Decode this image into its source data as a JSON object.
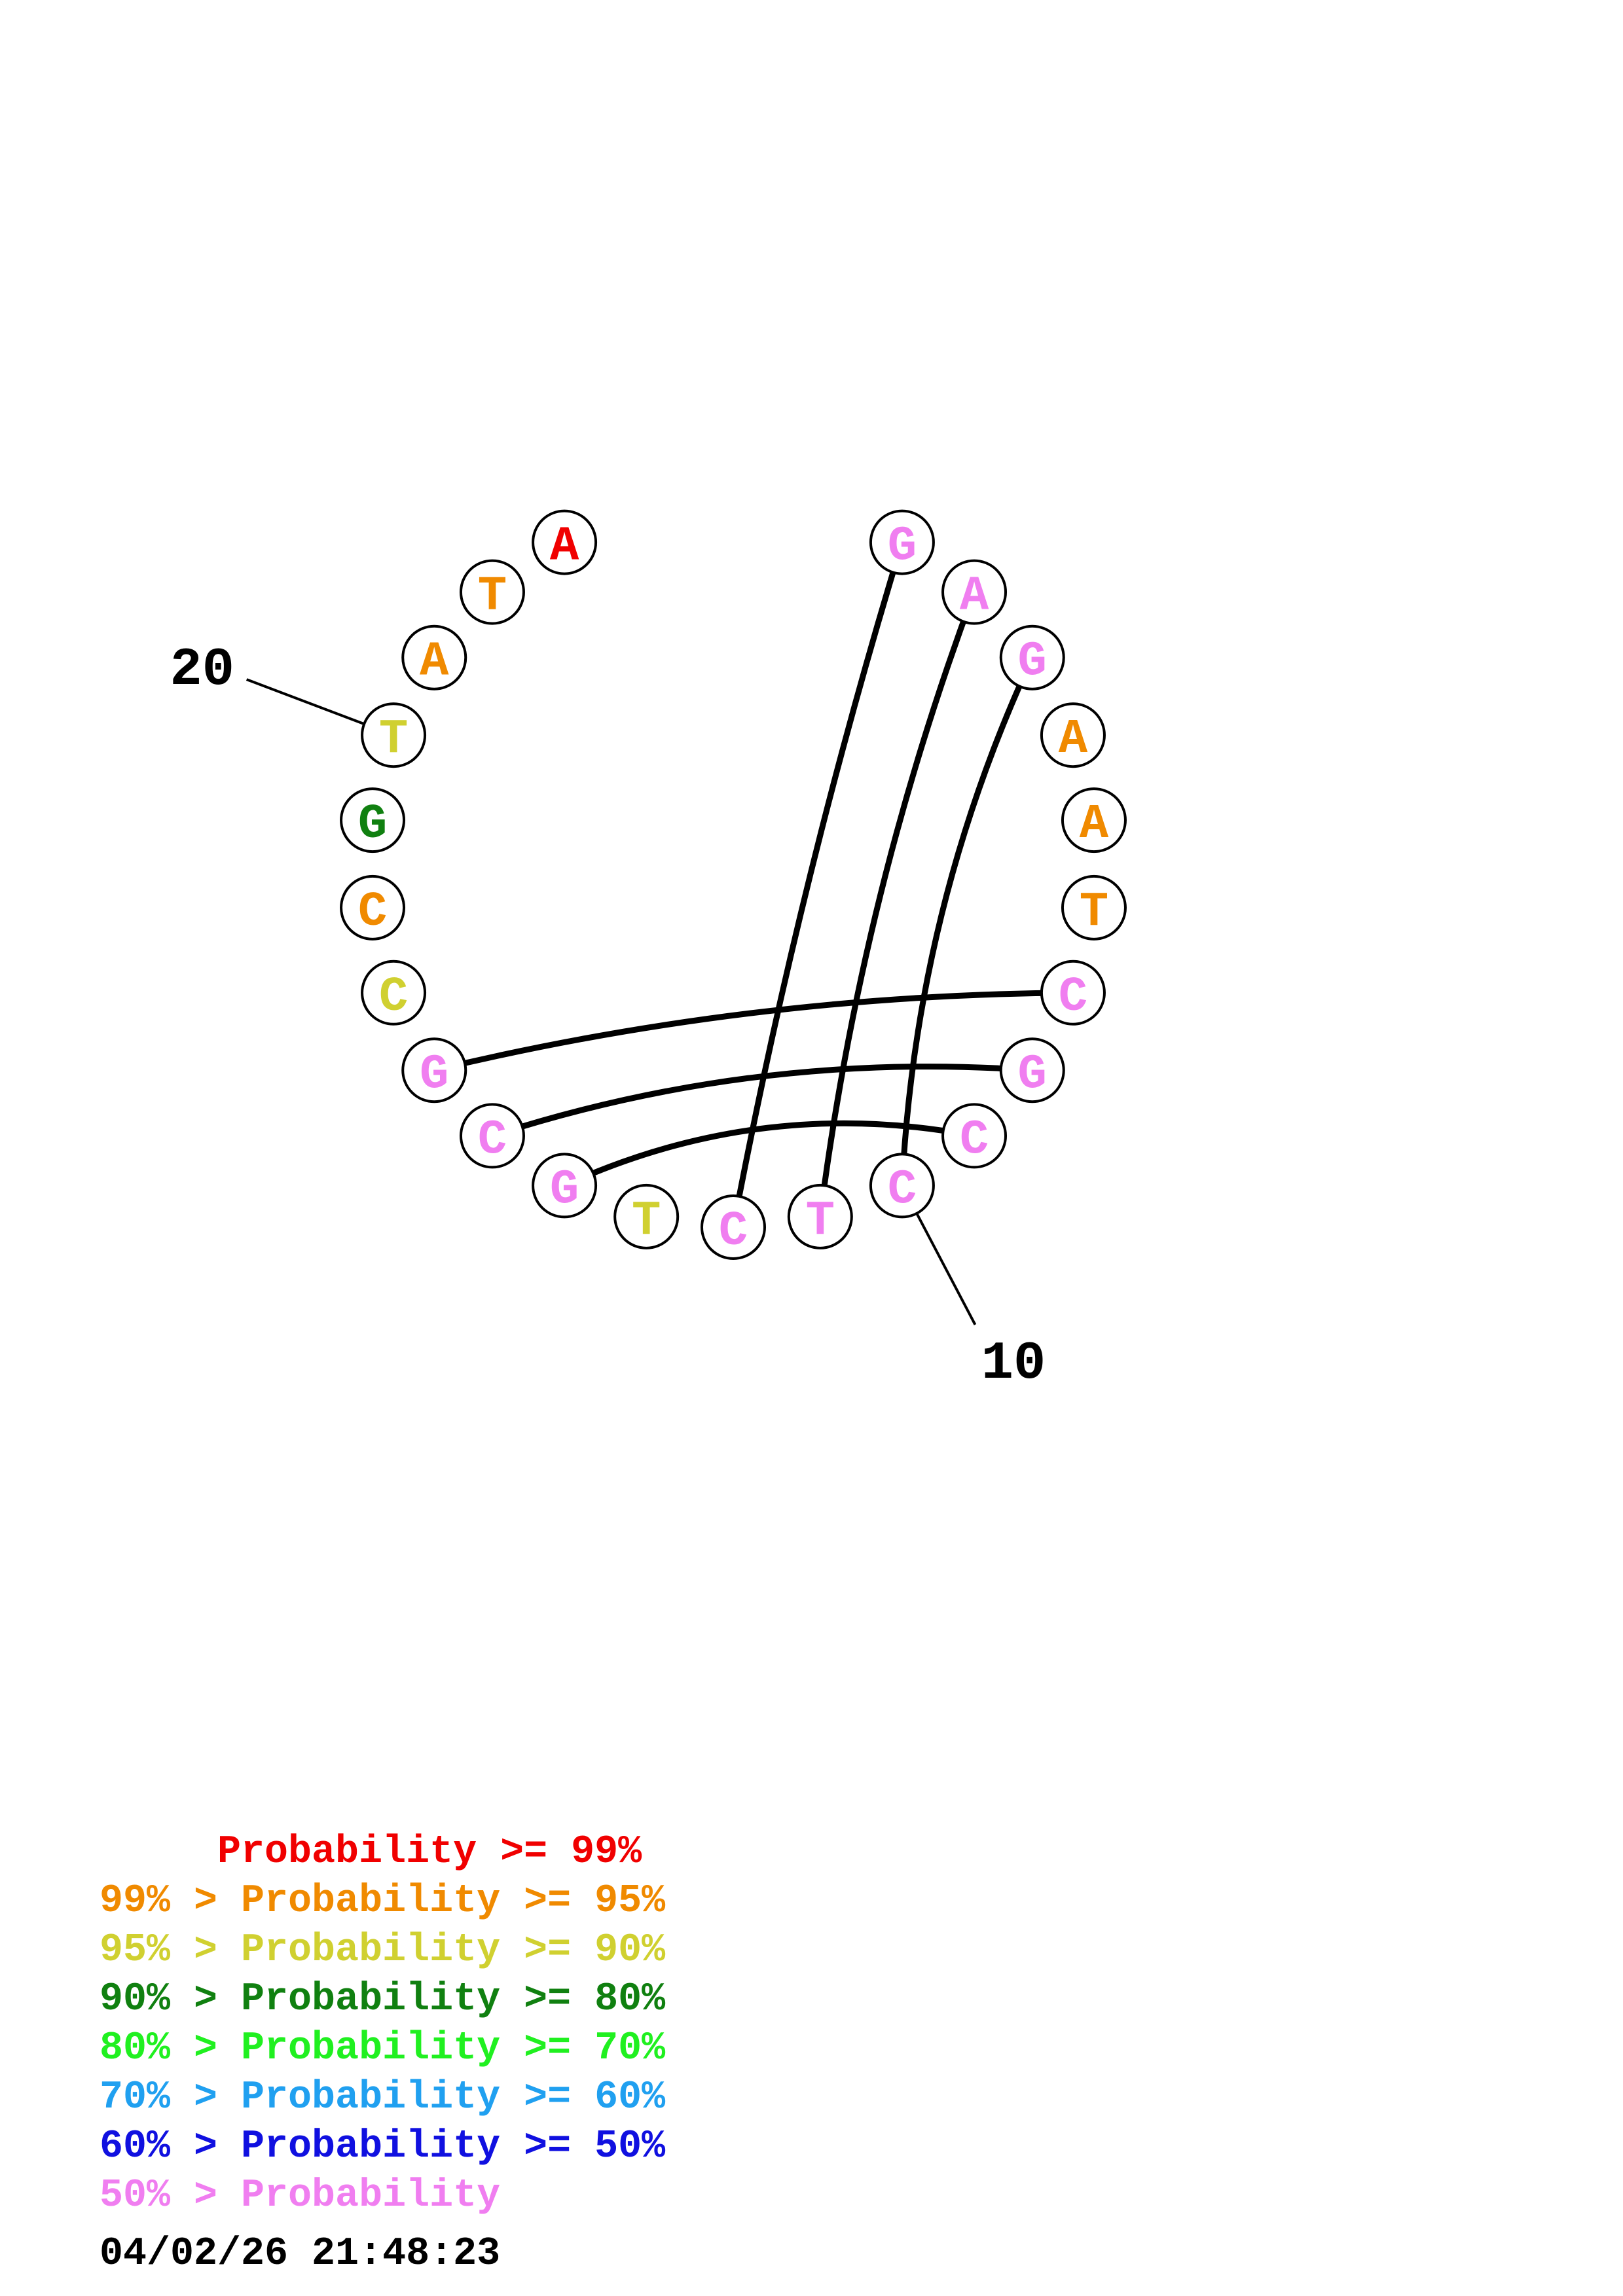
{
  "structure": {
    "bases": [
      {
        "n": 1,
        "base": "G",
        "color": "#f07ef0"
      },
      {
        "n": 2,
        "base": "A",
        "color": "#f07ef0"
      },
      {
        "n": 3,
        "base": "G",
        "color": "#f07ef0"
      },
      {
        "n": 4,
        "base": "A",
        "color": "#f08a00"
      },
      {
        "n": 5,
        "base": "A",
        "color": "#f08a00"
      },
      {
        "n": 6,
        "base": "T",
        "color": "#f08a00"
      },
      {
        "n": 7,
        "base": "C",
        "color": "#f07ef0"
      },
      {
        "n": 8,
        "base": "G",
        "color": "#f07ef0"
      },
      {
        "n": 9,
        "base": "C",
        "color": "#f07ef0"
      },
      {
        "n": 10,
        "base": "C",
        "color": "#f07ef0"
      },
      {
        "n": 11,
        "base": "T",
        "color": "#f07ef0"
      },
      {
        "n": 12,
        "base": "C",
        "color": "#f07ef0"
      },
      {
        "n": 13,
        "base": "T",
        "color": "#d0d030"
      },
      {
        "n": 14,
        "base": "G",
        "color": "#f07ef0"
      },
      {
        "n": 15,
        "base": "C",
        "color": "#f07ef0"
      },
      {
        "n": 16,
        "base": "G",
        "color": "#f07ef0"
      },
      {
        "n": 17,
        "base": "C",
        "color": "#d0d030"
      },
      {
        "n": 18,
        "base": "C",
        "color": "#f08a00"
      },
      {
        "n": 19,
        "base": "G",
        "color": "#108010"
      },
      {
        "n": 20,
        "base": "T",
        "color": "#d0d030"
      },
      {
        "n": 21,
        "base": "A",
        "color": "#f08a00"
      },
      {
        "n": 22,
        "base": "T",
        "color": "#f08a00"
      },
      {
        "n": 23,
        "base": "A",
        "color": "#f00000"
      }
    ],
    "pairs": [
      [
        1,
        12
      ],
      [
        2,
        11
      ],
      [
        3,
        10
      ],
      [
        7,
        16
      ],
      [
        8,
        15
      ],
      [
        9,
        14
      ]
    ],
    "index_labels": [
      {
        "n": 10,
        "text": "10"
      },
      {
        "n": 20,
        "text": "20"
      }
    ]
  },
  "legend": [
    {
      "text": "     Probability >= 99%",
      "color": "#f00000"
    },
    {
      "text": "99% > Probability >= 95%",
      "color": "#f08a00"
    },
    {
      "text": "95% > Probability >= 90%",
      "color": "#d0d030"
    },
    {
      "text": "90% > Probability >= 80%",
      "color": "#108010"
    },
    {
      "text": "80% > Probability >= 70%",
      "color": "#20f020"
    },
    {
      "text": "70% > Probability >= 60%",
      "color": "#20a0f0"
    },
    {
      "text": "60% > Probability >= 50%",
      "color": "#1010e0"
    },
    {
      "text": "50% > Probability",
      "color": "#f07ef0"
    }
  ],
  "timestamp": "04/02/26 21:48:23"
}
